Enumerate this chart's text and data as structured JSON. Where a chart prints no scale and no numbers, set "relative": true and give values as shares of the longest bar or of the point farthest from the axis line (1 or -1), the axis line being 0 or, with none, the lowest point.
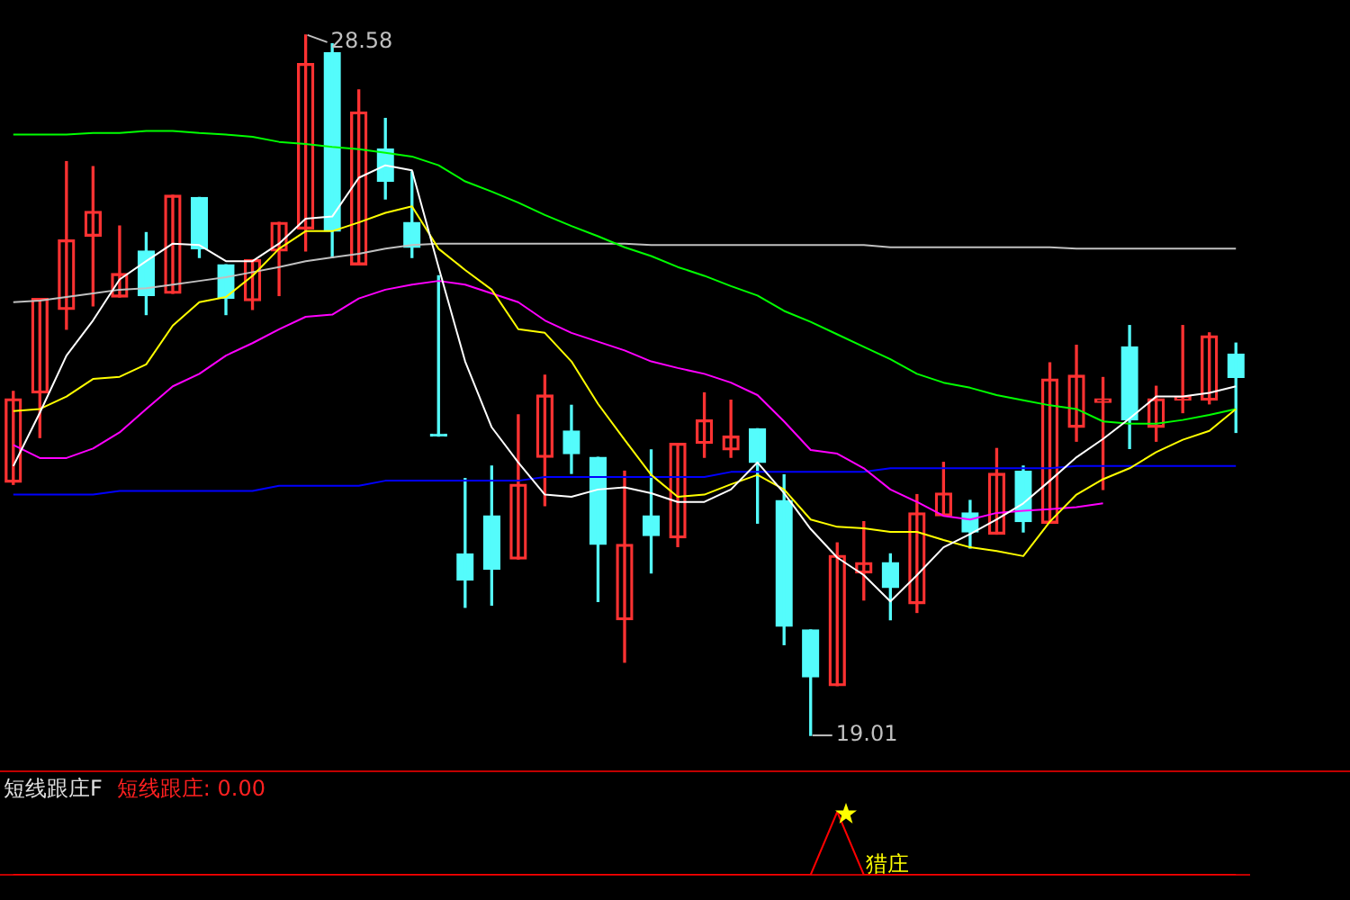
{
  "chart_data": [
    {
      "type": "candlestick",
      "categories": [
        null,
        null,
        null,
        null,
        null,
        null,
        null,
        null,
        null,
        null,
        null,
        null,
        null,
        null,
        null,
        null,
        null,
        null,
        null,
        null,
        null,
        null,
        null,
        null,
        null,
        null,
        null,
        null,
        null,
        null,
        null,
        null,
        null,
        null,
        null,
        null,
        null,
        null,
        null,
        null,
        null,
        null,
        null,
        null,
        null,
        null,
        null
      ],
      "ohlc": [
        [
          22.47,
          23.71,
          22.44,
          23.61
        ],
        [
          23.69,
          24.98,
          23.08,
          24.98
        ],
        [
          24.83,
          26.85,
          24.56,
          25.78
        ],
        [
          25.83,
          26.78,
          24.88,
          26.17
        ],
        [
          25.0,
          25.97,
          25.0,
          25.32
        ],
        [
          25.63,
          25.88,
          24.76,
          25.02
        ],
        [
          25.05,
          26.39,
          25.05,
          26.39
        ],
        [
          26.36,
          26.36,
          25.54,
          25.66
        ],
        [
          25.44,
          25.44,
          24.76,
          24.98
        ],
        [
          24.95,
          25.51,
          24.83,
          25.51
        ],
        [
          25.63,
          26.02,
          25.02,
          26.02
        ],
        [
          25.93,
          28.58,
          25.63,
          28.19
        ],
        [
          28.34,
          28.46,
          25.54,
          25.9
        ],
        [
          25.44,
          27.83,
          25.44,
          27.53
        ],
        [
          27.02,
          27.44,
          26.34,
          26.58
        ],
        [
          26.02,
          26.71,
          25.54,
          25.68
        ],
        [
          23.1,
          25.29,
          23.1,
          23.1
        ],
        [
          21.49,
          22.52,
          20.76,
          21.13
        ],
        [
          22.01,
          22.69,
          20.79,
          21.28
        ],
        [
          21.42,
          23.39,
          21.42,
          22.44
        ],
        [
          22.81,
          23.93,
          22.15,
          23.66
        ],
        [
          23.17,
          23.52,
          22.59,
          22.86
        ],
        [
          22.81,
          22.81,
          20.84,
          21.62
        ],
        [
          20.59,
          22.62,
          20.01,
          21.62
        ],
        [
          22.01,
          22.91,
          21.23,
          21.74
        ],
        [
          21.71,
          23.0,
          21.59,
          23.0
        ],
        [
          23.0,
          23.69,
          22.81,
          23.32
        ],
        [
          22.91,
          23.59,
          22.81,
          23.1
        ],
        [
          23.2,
          23.2,
          21.91,
          22.74
        ],
        [
          22.22,
          22.57,
          20.25,
          20.5
        ],
        [
          20.45,
          20.45,
          19.01,
          19.81
        ],
        [
          19.69,
          21.64,
          19.69,
          21.47
        ],
        [
          21.23,
          21.93,
          20.86,
          21.37
        ],
        [
          21.37,
          21.49,
          20.59,
          21.03
        ],
        [
          20.81,
          22.3,
          20.69,
          22.05
        ],
        [
          22.01,
          22.74,
          22.01,
          22.32
        ],
        [
          22.05,
          22.22,
          21.57,
          21.79
        ],
        [
          21.76,
          22.93,
          21.76,
          22.59
        ],
        [
          22.62,
          22.69,
          21.79,
          21.93
        ],
        [
          21.91,
          24.1,
          21.91,
          23.88
        ],
        [
          23.22,
          24.34,
          23.03,
          23.93
        ],
        [
          23.56,
          23.9,
          22.37,
          23.61
        ],
        [
          24.32,
          24.61,
          22.93,
          23.32
        ],
        [
          23.22,
          23.78,
          23.03,
          23.61
        ],
        [
          23.59,
          24.61,
          23.42,
          23.64
        ],
        [
          23.59,
          24.51,
          23.54,
          24.47
        ],
        [
          24.22,
          24.37,
          23.15,
          23.9
        ]
      ],
      "colors": [
        "#ff3232",
        "#ff3232",
        "#ff3232",
        "#ff3232",
        "#ff3232",
        "#54fcfc",
        "#ff3232",
        "#54fcfc",
        "#54fcfc",
        "#ff3232",
        "#ff3232",
        "#ff3232",
        "#54fcfc",
        "#ff3232",
        "#54fcfc",
        "#54fcfc",
        "#54fcfc",
        "#54fcfc",
        "#54fcfc",
        "#ff3232",
        "#ff3232",
        "#54fcfc",
        "#54fcfc",
        "#ff3232",
        "#54fcfc",
        "#ff3232",
        "#ff3232",
        "#ff3232",
        "#54fcfc",
        "#54fcfc",
        "#54fcfc",
        "#ff3232",
        "#ff3232",
        "#54fcfc",
        "#ff3232",
        "#ff3232",
        "#54fcfc",
        "#ff3232",
        "#54fcfc",
        "#ff3232",
        "#ff3232",
        "#ff3232",
        "#54fcfc",
        "#ff3232",
        "#ff3232",
        "#ff3232",
        "#54fcfc"
      ],
      "series": [
        {
          "type": "line",
          "color": "#ffffff",
          "values": [
            22.69,
            23.42,
            24.2,
            24.68,
            25.24,
            25.49,
            25.73,
            25.71,
            25.49,
            25.49,
            25.73,
            26.07,
            26.1,
            26.63,
            26.8,
            26.73,
            25.41,
            24.12,
            23.22,
            22.74,
            22.3,
            22.27,
            22.37,
            22.4,
            22.32,
            22.2,
            22.2,
            22.37,
            22.74,
            22.32,
            21.83,
            21.44,
            21.2,
            20.84,
            21.2,
            21.58,
            21.76,
            21.96,
            22.18,
            22.49,
            22.81,
            23.06,
            23.34,
            23.64,
            23.64,
            23.69,
            23.78
          ]
        },
        {
          "type": "line",
          "color": "#ffff00",
          "values": [
            23.44,
            23.47,
            23.64,
            23.88,
            23.91,
            24.08,
            24.61,
            24.93,
            25.0,
            25.29,
            25.66,
            25.9,
            25.9,
            26.02,
            26.15,
            26.24,
            25.66,
            25.37,
            25.1,
            24.56,
            24.51,
            24.12,
            23.54,
            23.05,
            22.57,
            22.27,
            22.3,
            22.44,
            22.57,
            22.37,
            21.96,
            21.86,
            21.84,
            21.79,
            21.79,
            21.68,
            21.58,
            21.53,
            21.46,
            21.93,
            22.3,
            22.51,
            22.66,
            22.88,
            23.05,
            23.17,
            23.47
          ]
        },
        {
          "type": "line",
          "color": "#ff00ff",
          "values": [
            22.98,
            22.8,
            22.8,
            22.93,
            23.15,
            23.47,
            23.78,
            23.95,
            24.2,
            24.37,
            24.56,
            24.73,
            24.76,
            24.98,
            25.1,
            25.17,
            25.22,
            25.17,
            25.05,
            24.93,
            24.68,
            24.51,
            24.39,
            24.27,
            24.12,
            24.03,
            23.95,
            23.83,
            23.66,
            23.3,
            22.91,
            22.86,
            22.66,
            22.37,
            22.2,
            22.01,
            21.96,
            22.05,
            22.08,
            22.1,
            22.13,
            22.18,
            null,
            null,
            null,
            null,
            null
          ]
        },
        {
          "type": "line",
          "color": "#0000ff",
          "values": [
            22.3,
            22.3,
            22.3,
            22.3,
            22.35,
            22.35,
            22.35,
            22.35,
            22.35,
            22.35,
            22.42,
            22.42,
            22.42,
            22.42,
            22.49,
            22.49,
            22.49,
            22.49,
            22.49,
            22.49,
            22.54,
            22.54,
            22.54,
            22.54,
            22.54,
            22.54,
            22.54,
            22.61,
            22.61,
            22.61,
            22.61,
            22.61,
            22.61,
            22.66,
            22.66,
            22.66,
            22.66,
            22.66,
            22.66,
            22.66,
            22.69,
            22.69,
            22.69,
            22.69,
            22.69,
            22.69,
            22.69
          ]
        },
        {
          "type": "line",
          "color": "#00ff00",
          "values": [
            27.22,
            27.22,
            27.22,
            27.24,
            27.24,
            27.27,
            27.27,
            27.24,
            27.22,
            27.19,
            27.12,
            27.09,
            27.05,
            27.02,
            26.97,
            26.92,
            26.8,
            26.58,
            26.44,
            26.29,
            26.12,
            25.97,
            25.83,
            25.68,
            25.56,
            25.41,
            25.29,
            25.15,
            25.02,
            24.81,
            24.66,
            24.49,
            24.32,
            24.15,
            23.95,
            23.83,
            23.76,
            23.66,
            23.59,
            23.52,
            23.47,
            23.3,
            23.27,
            23.27,
            23.32,
            23.39,
            23.47
          ]
        },
        {
          "type": "line",
          "color": "#c0c0c0",
          "values": [
            24.93,
            24.95,
            25.0,
            25.05,
            25.1,
            25.12,
            25.17,
            25.22,
            25.27,
            25.34,
            25.41,
            25.49,
            25.54,
            25.59,
            25.66,
            25.71,
            25.73,
            25.73,
            25.73,
            25.73,
            25.73,
            25.73,
            25.73,
            25.73,
            25.71,
            25.71,
            25.71,
            25.71,
            25.71,
            25.71,
            25.71,
            25.71,
            25.71,
            25.68,
            25.68,
            25.68,
            25.68,
            25.68,
            25.68,
            25.68,
            25.66,
            25.66,
            25.66,
            25.66,
            25.66,
            25.66,
            25.66
          ]
        }
      ],
      "annotations": [
        "28.58",
        "19.01"
      ],
      "marker": "none"
    },
    {
      "type": "line",
      "title": "短线跟庄F",
      "relative": true,
      "categories": [
        null,
        null,
        null,
        null,
        null,
        null,
        null,
        null,
        null,
        null,
        null,
        null,
        null,
        null,
        null,
        null,
        null,
        null,
        null,
        null,
        null,
        null,
        null,
        null,
        null,
        null,
        null,
        null,
        null,
        null,
        null,
        null,
        null,
        null,
        null,
        null,
        null,
        null,
        null,
        null,
        null,
        null,
        null,
        null,
        null,
        null,
        null
      ],
      "series": [
        {
          "color": "#ff0000",
          "values": [
            0,
            0,
            0,
            0,
            0,
            0,
            0,
            0,
            0,
            0,
            0,
            0,
            0,
            0,
            0,
            0,
            0,
            0,
            0,
            0,
            0,
            0,
            0,
            0,
            0,
            0,
            0,
            0,
            0,
            0,
            0,
            1,
            0,
            0,
            0,
            0,
            0,
            0,
            0,
            0,
            0,
            0,
            0,
            0,
            0,
            0,
            0
          ]
        }
      ],
      "annotations": [
        "短线跟庄: 0.00",
        "猎庄"
      ],
      "marker": "none"
    }
  ]
}
